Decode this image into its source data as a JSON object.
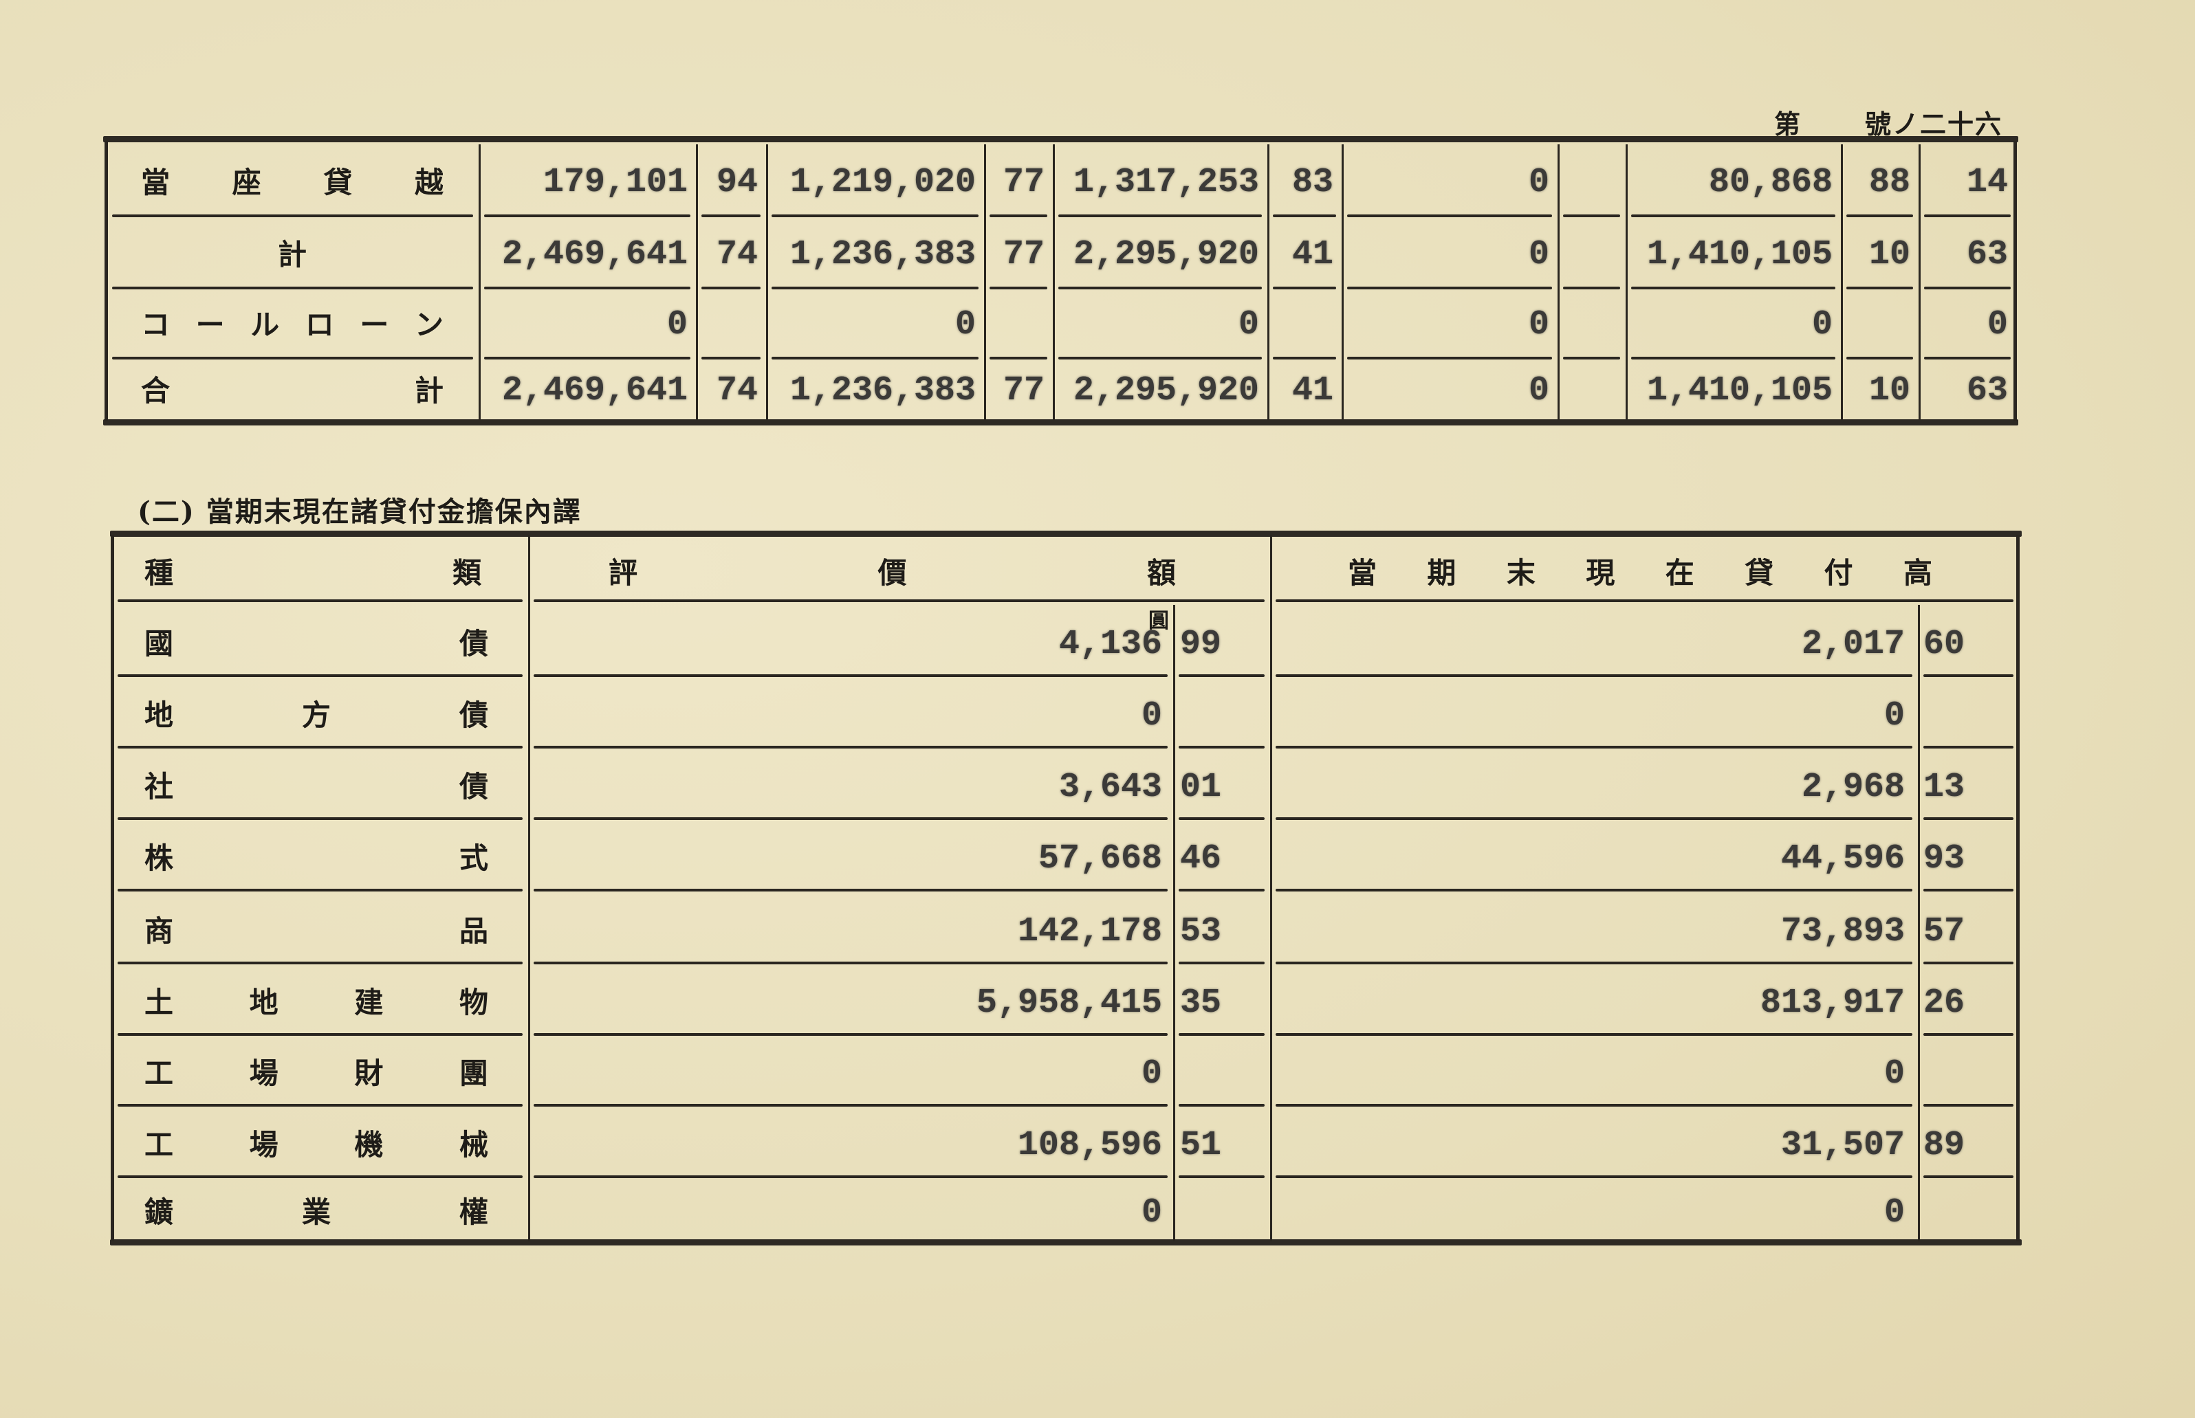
{
  "page_header": {
    "left": "第",
    "right": "號ノ二十六"
  },
  "table1": {
    "rows": [
      {
        "label": "當座貸越",
        "align": "spread",
        "c1": "179,101",
        "c1c": "94",
        "c2": "1,219,020",
        "c2c": "77",
        "c3": "1,317,253",
        "c3c": "83",
        "c4": "0",
        "c5": "",
        "c6": "80,868",
        "c6c": "88",
        "c7": "14"
      },
      {
        "label": "計",
        "align": "center",
        "c1": "2,469,641",
        "c1c": "74",
        "c2": "1,236,383",
        "c2c": "77",
        "c3": "2,295,920",
        "c3c": "41",
        "c4": "0",
        "c5": "",
        "c6": "1,410,105",
        "c6c": "10",
        "c7": "63"
      },
      {
        "label": "コールローン",
        "align": "spread",
        "c1": "0",
        "c1c": "",
        "c2": "0",
        "c2c": "",
        "c3": "0",
        "c3c": "",
        "c4": "0",
        "c5": "",
        "c6": "0",
        "c6c": "",
        "c7": "0"
      },
      {
        "label": "合計",
        "align": "spread",
        "c1": "2,469,641",
        "c1c": "74",
        "c2": "1,236,383",
        "c2c": "77",
        "c3": "2,295,920",
        "c3c": "41",
        "c4": "0",
        "c5": "",
        "c6": "1,410,105",
        "c6c": "10",
        "c7": "63"
      }
    ]
  },
  "section2": {
    "title": "(二) 當期末現在諸貸付金擔保內譯",
    "headers": {
      "type": "種類",
      "valuation": "評價額",
      "loan": "當期末現在貸付高"
    },
    "unit": "圓",
    "rows": [
      {
        "label": "國債",
        "val": "4,136",
        "valc": "99",
        "loan": "2,017",
        "loanc": "60"
      },
      {
        "label": "地方債",
        "val": "0",
        "valc": "",
        "loan": "0",
        "loanc": ""
      },
      {
        "label": "社債",
        "val": "3,643",
        "valc": "01",
        "loan": "2,968",
        "loanc": "13"
      },
      {
        "label": "株式",
        "val": "57,668",
        "valc": "46",
        "loan": "44,596",
        "loanc": "93"
      },
      {
        "label": "商品",
        "val": "142,178",
        "valc": "53",
        "loan": "73,893",
        "loanc": "57"
      },
      {
        "label": "土地建物",
        "val": "5,958,415",
        "valc": "35",
        "loan": "813,917",
        "loanc": "26"
      },
      {
        "label": "工場財團",
        "val": "0",
        "valc": "",
        "loan": "0",
        "loanc": ""
      },
      {
        "label": "工場機械",
        "val": "108,596",
        "valc": "51",
        "loan": "31,507",
        "loanc": "89"
      },
      {
        "label": "鑛業權",
        "val": "0",
        "valc": "",
        "loan": "0",
        "loanc": ""
      }
    ]
  },
  "colors": {
    "paper": "#ebe2c0",
    "ink": "#1e1c18",
    "typewriter": "#3b3a38"
  }
}
